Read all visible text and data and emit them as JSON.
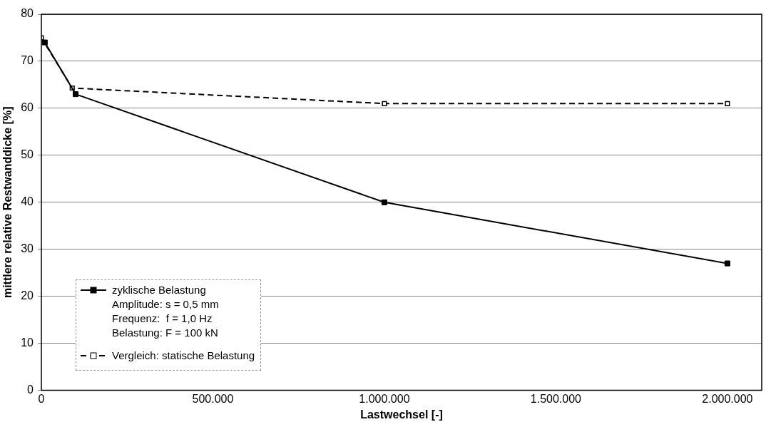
{
  "chart_data": {
    "type": "line",
    "xlabel": "Lastwechsel [-]",
    "ylabel": "mittlere relative Restwanddicke [%]",
    "xlim": [
      0,
      2100000
    ],
    "xticks": [
      {
        "value": 0,
        "label": "0"
      },
      {
        "value": 500000,
        "label": "500.000"
      },
      {
        "value": 1000000,
        "label": "1.000.000"
      },
      {
        "value": 1500000,
        "label": "1.500.000"
      },
      {
        "value": 2000000,
        "label": "2.000.000"
      }
    ],
    "ylim": [
      0,
      80
    ],
    "yticks": [
      0,
      10,
      20,
      30,
      40,
      50,
      60,
      70,
      80
    ],
    "grid": "y",
    "legend": "bottom left",
    "marker": "square",
    "series": [
      {
        "name": "zyklische Belastung",
        "color": "#000000",
        "line_style": "solid",
        "x": [
          10000,
          100000,
          1000000,
          2000000
        ],
        "values": [
          74,
          63,
          40,
          27
        ]
      },
      {
        "name": "Vergleich: statische Belastung",
        "color": "#000000",
        "line_style": "dashed",
        "x": [
          0,
          90000,
          1000000,
          2000000
        ],
        "values": [
          75,
          64.3,
          61,
          61
        ]
      }
    ],
    "annotations": [
      "Amplitude: s = 0,5 mm",
      "Frequenz:  f = 1,0 Hz",
      "Belastung: F = 100 kN"
    ]
  }
}
